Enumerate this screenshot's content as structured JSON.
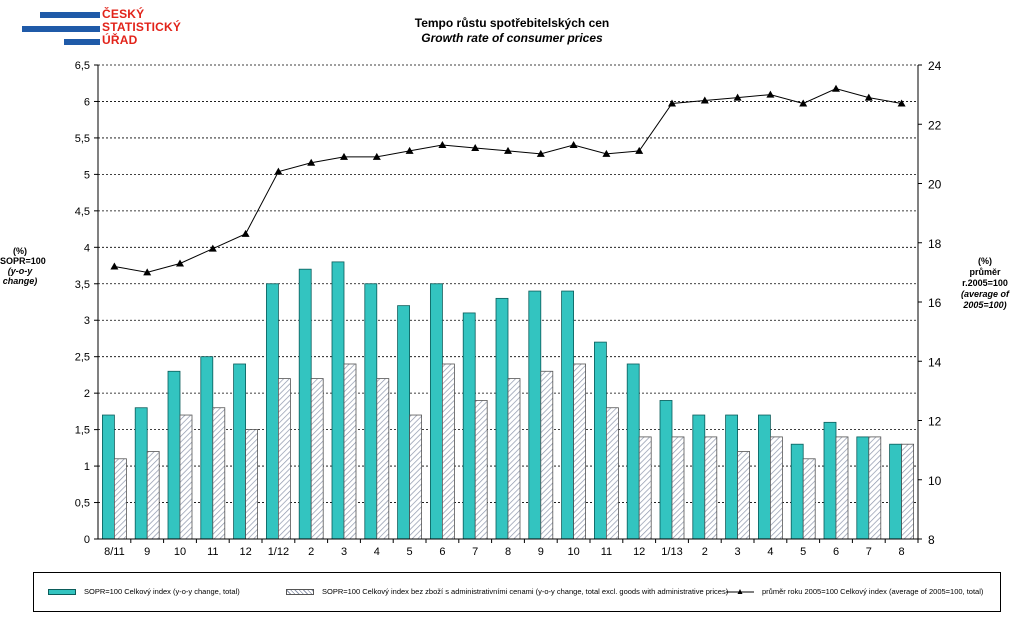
{
  "logo": {
    "line1": "ČESKÝ",
    "line2": "STATISTICKÝ",
    "line3": "ÚŘAD"
  },
  "colors": {
    "logo_blue": "#1f5aa8",
    "logo_red": "#e2231a",
    "bar_total": "#33c4c0",
    "bar_total_border": "#0b5c5a",
    "bar_hatch": "#9aa3b8",
    "line": "#000000"
  },
  "chart_data": {
    "type": "bar",
    "title": "Tempo růstu spotřebitelských cen",
    "subtitle": "Growth rate of consumer prices",
    "categories": [
      "8/11",
      "9",
      "10",
      "11",
      "12",
      "1/12",
      "2",
      "3",
      "4",
      "5",
      "6",
      "7",
      "8",
      "9",
      "10",
      "11",
      "12",
      "1/13",
      "2",
      "3",
      "4",
      "5",
      "6",
      "7",
      "8"
    ],
    "ylabel_left": [
      "(%)",
      "SOPR=100",
      "(y-o-y change)"
    ],
    "ylabel_right": [
      "(%)",
      "průměr r.2005=100",
      "(average of 2005=100)"
    ],
    "ylim_left": [
      0,
      6.5
    ],
    "yticks_left": [
      "0",
      "0,5",
      "1",
      "1,5",
      "2",
      "2,5",
      "3",
      "3,5",
      "4",
      "4,5",
      "5",
      "5,5",
      "6",
      "6,5"
    ],
    "ylim_right": [
      8,
      24
    ],
    "yticks_right": [
      "8",
      "10",
      "12",
      "14",
      "16",
      "18",
      "20",
      "22",
      "24"
    ],
    "grid": true,
    "legend_position": "bottom",
    "series": [
      {
        "name": "SOPR=100 Celkový index (y-o-y change, total)",
        "type": "bar",
        "axis": "left",
        "values": [
          1.7,
          1.8,
          2.3,
          2.5,
          2.4,
          3.5,
          3.7,
          3.8,
          3.5,
          3.2,
          3.5,
          3.1,
          3.3,
          3.4,
          3.4,
          2.7,
          2.4,
          1.9,
          1.7,
          1.7,
          1.7,
          1.3,
          1.6,
          1.4,
          1.3
        ]
      },
      {
        "name": "SOPR=100 Celkový index bez zboží s administrativními cenami (y-o-y change, total excl. goods with administrative prices)",
        "type": "bar",
        "axis": "left",
        "values": [
          1.1,
          1.2,
          1.7,
          1.8,
          1.5,
          2.2,
          2.2,
          2.4,
          2.2,
          1.7,
          2.4,
          1.9,
          2.2,
          2.3,
          2.4,
          1.8,
          1.4,
          1.4,
          1.4,
          1.2,
          1.4,
          1.1,
          1.4,
          1.4,
          1.3
        ]
      },
      {
        "name": "průměr roku 2005=100 Celkový index (average of 2005=100, total)",
        "type": "line",
        "axis": "right",
        "values": [
          17.2,
          17.0,
          17.3,
          17.8,
          18.3,
          20.4,
          20.7,
          20.9,
          20.9,
          21.1,
          21.3,
          21.2,
          21.1,
          21.0,
          21.3,
          21.0,
          21.1,
          22.7,
          22.8,
          22.9,
          23.0,
          22.7,
          23.2,
          22.9,
          22.7
        ]
      }
    ]
  }
}
